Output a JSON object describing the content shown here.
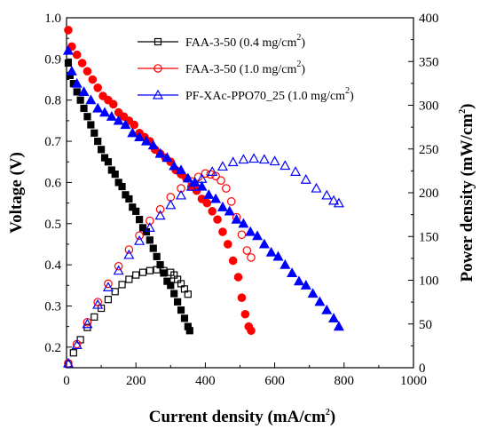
{
  "chart_data": {
    "type": "scatter",
    "title": "",
    "xlabel": "Current density",
    "xlabel_unit_base": "(mA/cm",
    "xlabel_unit_sup": "2",
    "xlabel_unit_end": ")",
    "ylabel": "Voltage (V)",
    "y2label_base": "Power density (mW/cm",
    "y2label_sup": "2",
    "y2label_end": ")",
    "xlim": [
      0,
      1000
    ],
    "ylim": [
      0.15,
      1.0
    ],
    "y2lim": [
      0,
      400
    ],
    "xticks": [
      "0",
      "200",
      "400",
      "600",
      "800",
      "1000"
    ],
    "yticks": [
      "0.2",
      "0.3",
      "0.4",
      "0.5",
      "0.6",
      "0.7",
      "0.8",
      "0.9",
      "1.0"
    ],
    "y2ticks": [
      "0",
      "50",
      "100",
      "150",
      "200",
      "250",
      "300",
      "350",
      "400"
    ],
    "grid": false,
    "legend_position": "top-right",
    "series": [
      {
        "name": "FAA-3-50 (0.4 mg/cm",
        "name_sup": "2",
        "name_end": ")",
        "color": "#000000",
        "marker": "square",
        "voltage": {
          "x": [
            5,
            10,
            20,
            30,
            40,
            50,
            60,
            70,
            80,
            90,
            100,
            110,
            120,
            130,
            140,
            150,
            160,
            170,
            180,
            190,
            200,
            210,
            220,
            230,
            240,
            250,
            260,
            270,
            280,
            290,
            300,
            310,
            320,
            330,
            340,
            350,
            355
          ],
          "y": [
            0.89,
            0.86,
            0.84,
            0.82,
            0.8,
            0.78,
            0.76,
            0.74,
            0.72,
            0.7,
            0.68,
            0.66,
            0.65,
            0.63,
            0.62,
            0.6,
            0.59,
            0.57,
            0.56,
            0.54,
            0.53,
            0.51,
            0.49,
            0.48,
            0.46,
            0.44,
            0.42,
            0.4,
            0.38,
            0.36,
            0.35,
            0.33,
            0.31,
            0.29,
            0.27,
            0.25,
            0.24
          ]
        },
        "power": {
          "x": [
            5,
            20,
            40,
            60,
            80,
            100,
            120,
            140,
            160,
            180,
            200,
            220,
            240,
            260,
            280,
            300,
            310,
            320,
            330,
            340,
            350
          ],
          "y": [
            4,
            17,
            32,
            46,
            58,
            68,
            78,
            87,
            95,
            101,
            106,
            109,
            111,
            112,
            111,
            109,
            106,
            101,
            96,
            90,
            84
          ]
        }
      },
      {
        "name": "FAA-3-50 (1.0 mg/cm",
        "name_sup": "2",
        "name_end": ")",
        "color": "#ff0000",
        "marker": "circle",
        "voltage": {
          "x": [
            5,
            15,
            30,
            45,
            60,
            75,
            90,
            105,
            120,
            135,
            150,
            165,
            180,
            195,
            210,
            225,
            240,
            255,
            270,
            285,
            300,
            315,
            330,
            345,
            360,
            375,
            390,
            405,
            420,
            435,
            450,
            465,
            480,
            495,
            505,
            515,
            525,
            532
          ],
          "y": [
            0.97,
            0.93,
            0.91,
            0.89,
            0.87,
            0.85,
            0.83,
            0.81,
            0.8,
            0.79,
            0.77,
            0.76,
            0.75,
            0.74,
            0.72,
            0.71,
            0.7,
            0.68,
            0.67,
            0.66,
            0.65,
            0.63,
            0.62,
            0.61,
            0.59,
            0.58,
            0.56,
            0.55,
            0.53,
            0.51,
            0.48,
            0.45,
            0.41,
            0.37,
            0.32,
            0.28,
            0.25,
            0.24
          ]
        },
        "power": {
          "x": [
            5,
            30,
            60,
            90,
            120,
            150,
            180,
            210,
            240,
            270,
            300,
            330,
            360,
            380,
            400,
            415,
            430,
            445,
            460,
            475,
            490,
            505,
            520,
            532
          ],
          "y": [
            5,
            27,
            52,
            75,
            96,
            116,
            135,
            151,
            168,
            181,
            195,
            205,
            213,
            218,
            222,
            221,
            219,
            214,
            205,
            190,
            172,
            152,
            134,
            126
          ]
        }
      },
      {
        "name": "PF-XAc-PPO70_25 (1.0 mg/cm",
        "name_sup": "2",
        "name_end": ")",
        "color": "#0000ff",
        "marker": "triangle",
        "voltage": {
          "x": [
            5,
            15,
            30,
            50,
            70,
            90,
            110,
            130,
            150,
            170,
            190,
            210,
            230,
            250,
            270,
            290,
            310,
            330,
            350,
            370,
            390,
            410,
            430,
            450,
            470,
            490,
            510,
            530,
            550,
            570,
            590,
            610,
            630,
            650,
            670,
            690,
            710,
            730,
            750,
            770,
            785
          ],
          "y": [
            0.92,
            0.87,
            0.84,
            0.82,
            0.8,
            0.78,
            0.77,
            0.76,
            0.75,
            0.74,
            0.72,
            0.71,
            0.7,
            0.69,
            0.67,
            0.66,
            0.64,
            0.63,
            0.61,
            0.6,
            0.59,
            0.57,
            0.56,
            0.54,
            0.53,
            0.51,
            0.5,
            0.48,
            0.47,
            0.45,
            0.43,
            0.42,
            0.4,
            0.38,
            0.36,
            0.35,
            0.33,
            0.31,
            0.29,
            0.27,
            0.25
          ]
        },
        "power": {
          "x": [
            5,
            30,
            60,
            90,
            120,
            150,
            180,
            210,
            240,
            270,
            300,
            330,
            360,
            390,
            420,
            450,
            480,
            510,
            540,
            570,
            600,
            630,
            660,
            690,
            720,
            750,
            770,
            785
          ],
          "y": [
            5,
            26,
            50,
            72,
            92,
            111,
            129,
            145,
            160,
            174,
            186,
            197,
            207,
            216,
            224,
            230,
            235,
            238,
            239,
            238,
            236,
            231,
            224,
            215,
            205,
            197,
            191,
            188
          ]
        }
      }
    ]
  }
}
